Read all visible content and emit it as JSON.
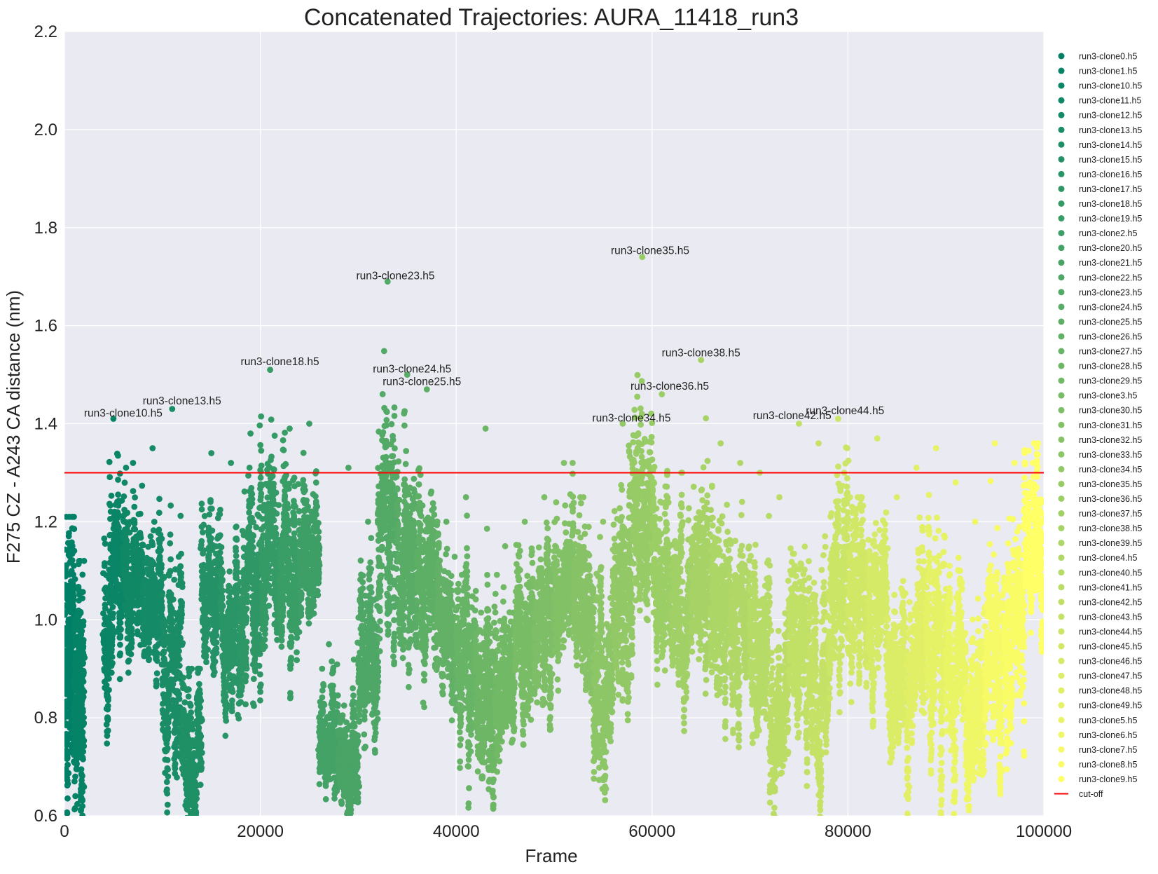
{
  "chart_data": {
    "type": "scatter",
    "title": "Concatenated Trajectories: AURA_11418_run3",
    "xlabel": "Frame",
    "ylabel": "F275 CZ - A243 CA distance (nm)",
    "xlim": [
      0,
      100000
    ],
    "ylim": [
      0.6,
      2.2
    ],
    "x_ticks": [
      "0",
      "20000",
      "40000",
      "60000",
      "80000",
      "100000"
    ],
    "y_ticks": [
      "0.6",
      "0.8",
      "1.0",
      "1.2",
      "1.4",
      "1.6",
      "1.8",
      "2.0",
      "2.2"
    ],
    "grid": true,
    "background": "#eaeaf2",
    "legend_position": "right",
    "cutoff": {
      "name": "cut-off",
      "value": 1.3,
      "color": "#ff0000"
    },
    "colormap": [
      "#008066",
      "#ffff66"
    ],
    "series": [
      {
        "name": "run3-clone0.h5",
        "x_range": [
          0,
          1000
        ],
        "median": 0.85,
        "spread": 0.16,
        "max": 1.21
      },
      {
        "name": "run3-clone1.h5",
        "x_range": [
          1000,
          2000
        ],
        "median": 0.78,
        "spread": 0.15,
        "max": 1.12
      },
      {
        "name": "run3-clone10.h5",
        "x_range": [
          4000,
          6000
        ],
        "median": 1.02,
        "spread": 0.12,
        "max": 1.41
      },
      {
        "name": "run3-clone11.h5",
        "x_range": [
          6000,
          8000
        ],
        "median": 1.05,
        "spread": 0.1,
        "max": 1.32
      },
      {
        "name": "run3-clone12.h5",
        "x_range": [
          8000,
          10000
        ],
        "median": 1.0,
        "spread": 0.1,
        "max": 1.35
      },
      {
        "name": "run3-clone13.h5",
        "x_range": [
          10000,
          12000
        ],
        "median": 0.9,
        "spread": 0.14,
        "max": 1.43
      },
      {
        "name": "run3-clone14.h5",
        "x_range": [
          12000,
          14000
        ],
        "median": 0.72,
        "spread": 0.1,
        "max": 0.9
      },
      {
        "name": "run3-clone15.h5",
        "x_range": [
          14000,
          16000
        ],
        "median": 1.05,
        "spread": 0.1,
        "max": 1.34
      },
      {
        "name": "run3-clone16.h5",
        "x_range": [
          16000,
          18000
        ],
        "median": 0.98,
        "spread": 0.11,
        "max": 1.32
      },
      {
        "name": "run3-clone17.h5",
        "x_range": [
          18000,
          20000
        ],
        "median": 1.02,
        "spread": 0.12,
        "max": 1.38
      },
      {
        "name": "run3-clone18.h5",
        "x_range": [
          20000,
          22000
        ],
        "median": 1.1,
        "spread": 0.13,
        "max": 1.51
      },
      {
        "name": "run3-clone19.h5",
        "x_range": [
          22000,
          24000
        ],
        "median": 1.08,
        "spread": 0.11,
        "max": 1.39
      },
      {
        "name": "run3-clone2.h5",
        "x_range": [
          24000,
          26000
        ],
        "median": 1.12,
        "spread": 0.09,
        "max": 1.4
      },
      {
        "name": "run3-clone20.h5",
        "x_range": [
          26000,
          28000
        ],
        "median": 0.75,
        "spread": 0.08,
        "max": 0.95
      },
      {
        "name": "run3-clone21.h5",
        "x_range": [
          28000,
          30000
        ],
        "median": 0.72,
        "spread": 0.08,
        "max": 1.31
      },
      {
        "name": "run3-clone22.h5",
        "x_range": [
          30000,
          32000
        ],
        "median": 0.95,
        "spread": 0.1,
        "max": 1.2
      },
      {
        "name": "run3-clone23.h5",
        "x_range": [
          32000,
          34000
        ],
        "median": 1.2,
        "spread": 0.14,
        "max": 1.69
      },
      {
        "name": "run3-clone24.h5",
        "x_range": [
          34000,
          36000
        ],
        "median": 1.1,
        "spread": 0.13,
        "max": 1.5
      },
      {
        "name": "run3-clone25.h5",
        "x_range": [
          36000,
          38000
        ],
        "median": 1.05,
        "spread": 0.12,
        "max": 1.47
      },
      {
        "name": "run3-clone26.h5",
        "x_range": [
          38000,
          40000
        ],
        "median": 0.95,
        "spread": 0.1,
        "max": 1.2
      },
      {
        "name": "run3-clone27.h5",
        "x_range": [
          40000,
          42000
        ],
        "median": 0.92,
        "spread": 0.12,
        "max": 1.25
      },
      {
        "name": "run3-clone28.h5",
        "x_range": [
          42000,
          44000
        ],
        "median": 0.85,
        "spread": 0.12,
        "max": 1.39
      },
      {
        "name": "run3-clone29.h5",
        "x_range": [
          44000,
          46000
        ],
        "median": 0.88,
        "spread": 0.1,
        "max": 1.15
      },
      {
        "name": "run3-clone3.h5",
        "x_range": [
          46000,
          48000
        ],
        "median": 0.95,
        "spread": 0.1,
        "max": 1.2
      },
      {
        "name": "run3-clone30.h5",
        "x_range": [
          48000,
          50000
        ],
        "median": 0.98,
        "spread": 0.1,
        "max": 1.25
      },
      {
        "name": "run3-clone31.h5",
        "x_range": [
          50000,
          52000
        ],
        "median": 1.02,
        "spread": 0.1,
        "max": 1.32
      },
      {
        "name": "run3-clone32.h5",
        "x_range": [
          52000,
          54000
        ],
        "median": 0.98,
        "spread": 0.1,
        "max": 1.25
      },
      {
        "name": "run3-clone33.h5",
        "x_range": [
          54000,
          56000
        ],
        "median": 0.85,
        "spread": 0.12,
        "max": 1.2
      },
      {
        "name": "run3-clone34.h5",
        "x_range": [
          56000,
          58000
        ],
        "median": 1.05,
        "spread": 0.14,
        "max": 1.4
      },
      {
        "name": "run3-clone35.h5",
        "x_range": [
          58000,
          60000
        ],
        "median": 1.2,
        "spread": 0.14,
        "max": 1.74
      },
      {
        "name": "run3-clone36.h5",
        "x_range": [
          60000,
          62000
        ],
        "median": 1.08,
        "spread": 0.12,
        "max": 1.46
      },
      {
        "name": "run3-clone37.h5",
        "x_range": [
          62000,
          64000
        ],
        "median": 1.0,
        "spread": 0.1,
        "max": 1.3
      },
      {
        "name": "run3-clone38.h5",
        "x_range": [
          64000,
          66000
        ],
        "median": 1.05,
        "spread": 0.14,
        "max": 1.53
      },
      {
        "name": "run3-clone39.h5",
        "x_range": [
          66000,
          68000
        ],
        "median": 0.95,
        "spread": 0.12,
        "max": 1.36
      },
      {
        "name": "run3-clone4.h5",
        "x_range": [
          68000,
          70000
        ],
        "median": 0.98,
        "spread": 0.11,
        "max": 1.32
      },
      {
        "name": "run3-clone40.h5",
        "x_range": [
          70000,
          72000
        ],
        "median": 0.9,
        "spread": 0.12,
        "max": 1.3
      },
      {
        "name": "run3-clone41.h5",
        "x_range": [
          72000,
          74000
        ],
        "median": 0.8,
        "spread": 0.12,
        "max": 1.25
      },
      {
        "name": "run3-clone42.h5",
        "x_range": [
          74000,
          76000
        ],
        "median": 0.95,
        "spread": 0.13,
        "max": 1.4
      },
      {
        "name": "run3-clone43.h5",
        "x_range": [
          76000,
          78000
        ],
        "median": 0.85,
        "spread": 0.12,
        "max": 1.36
      },
      {
        "name": "run3-clone44.h5",
        "x_range": [
          78000,
          80000
        ],
        "median": 1.05,
        "spread": 0.13,
        "max": 1.41
      },
      {
        "name": "run3-clone45.h5",
        "x_range": [
          80000,
          82000
        ],
        "median": 0.98,
        "spread": 0.11,
        "max": 1.25
      },
      {
        "name": "run3-clone46.h5",
        "x_range": [
          82000,
          84000
        ],
        "median": 1.0,
        "spread": 0.11,
        "max": 1.37
      },
      {
        "name": "run3-clone47.h5",
        "x_range": [
          84000,
          86000
        ],
        "median": 0.85,
        "spread": 0.1,
        "max": 1.25
      },
      {
        "name": "run3-clone48.h5",
        "x_range": [
          86000,
          88000
        ],
        "median": 0.88,
        "spread": 0.12,
        "max": 1.31
      },
      {
        "name": "run3-clone49.h5",
        "x_range": [
          88000,
          90000
        ],
        "median": 0.9,
        "spread": 0.14,
        "max": 1.35
      },
      {
        "name": "run3-clone5.h5",
        "x_range": [
          90000,
          92000
        ],
        "median": 0.88,
        "spread": 0.12,
        "max": 1.28
      },
      {
        "name": "run3-clone6.h5",
        "x_range": [
          92000,
          94000
        ],
        "median": 0.8,
        "spread": 0.12,
        "max": 1.2
      },
      {
        "name": "run3-clone7.h5",
        "x_range": [
          94000,
          96000
        ],
        "median": 0.85,
        "spread": 0.13,
        "max": 1.36
      },
      {
        "name": "run3-clone8.h5",
        "x_range": [
          96000,
          98000
        ],
        "median": 0.95,
        "spread": 0.13,
        "max": 1.32
      },
      {
        "name": "run3-clone9.h5",
        "x_range": [
          98000,
          100000
        ],
        "median": 1.15,
        "spread": 0.09,
        "max": 1.36
      }
    ],
    "annotations": [
      {
        "text": "run3-clone10.h5",
        "x": 6000,
        "y": 1.41
      },
      {
        "text": "run3-clone13.h5",
        "x": 12000,
        "y": 1.435
      },
      {
        "text": "run3-clone18.h5",
        "x": 22000,
        "y": 1.515
      },
      {
        "text": "run3-clone23.h5",
        "x": 33800,
        "y": 1.69
      },
      {
        "text": "run3-clone24.h5",
        "x": 35500,
        "y": 1.5
      },
      {
        "text": "run3-clone25.h5",
        "x": 36500,
        "y": 1.474
      },
      {
        "text": "run3-clone34.h5",
        "x": 57900,
        "y": 1.4
      },
      {
        "text": "run3-clone35.h5",
        "x": 59800,
        "y": 1.742
      },
      {
        "text": "run3-clone36.h5",
        "x": 61800,
        "y": 1.465
      },
      {
        "text": "run3-clone38.h5",
        "x": 65000,
        "y": 1.533
      },
      {
        "text": "run3-clone42.h5",
        "x": 74300,
        "y": 1.405
      },
      {
        "text": "run3-clone44.h5",
        "x": 79700,
        "y": 1.415
      }
    ]
  }
}
